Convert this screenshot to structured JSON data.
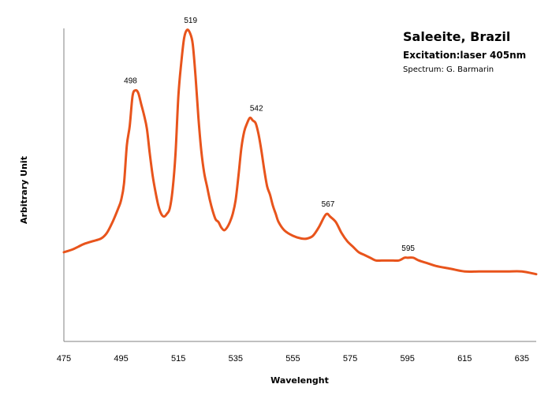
{
  "chart_data": {
    "type": "line",
    "title": "Saleeite, Brazil",
    "subtitle": "Excitation:laser 405nm",
    "credit": "Spectrum: G. Barmarin",
    "xlabel": "Wavelenght",
    "ylabel": "Arbitrary Unit",
    "xlim": [
      475,
      640
    ],
    "ylim": [
      0,
      100
    ],
    "x_ticks": [
      475,
      495,
      515,
      535,
      555,
      575,
      595,
      615,
      635
    ],
    "grid": false,
    "line_color": "#e8541c",
    "series": [
      {
        "x": [
          475,
          478,
          480,
          482,
          485,
          488,
          490,
          492,
          494,
          495,
          496,
          497,
          498,
          499,
          500,
          501,
          502,
          503,
          504,
          505,
          506,
          507,
          508,
          509,
          510,
          511,
          512,
          513,
          514,
          515,
          516,
          517,
          518,
          519,
          520,
          521,
          522,
          523,
          524,
          525,
          526,
          527,
          528,
          529,
          530,
          531,
          532,
          533,
          534,
          535,
          536,
          537,
          538,
          539,
          540,
          541,
          542,
          543,
          544,
          545,
          546,
          547,
          548,
          549,
          550,
          552,
          555,
          558,
          560,
          562,
          564,
          566,
          567,
          568,
          570,
          572,
          574,
          576,
          578,
          580,
          582,
          584,
          586,
          588,
          590,
          592,
          594,
          595,
          597,
          599,
          602,
          605,
          610,
          615,
          620,
          625,
          630,
          635,
          640
        ],
        "y": [
          19,
          20,
          21,
          22,
          23,
          24,
          26,
          30,
          35,
          38,
          44,
          58,
          65,
          76,
          78,
          77,
          73,
          69,
          64,
          55,
          47,
          41,
          36,
          33,
          32,
          33,
          35,
          42,
          55,
          76,
          88,
          97,
          100,
          99,
          95,
          83,
          68,
          56,
          48,
          43,
          38,
          34,
          31,
          30,
          28,
          27,
          28,
          30,
          33,
          38,
          47,
          57,
          63,
          66,
          68,
          67,
          66,
          62,
          56,
          49,
          43,
          40,
          36,
          33,
          30,
          27,
          25,
          24,
          24,
          25,
          28,
          32,
          33,
          32,
          30,
          26,
          23,
          21,
          19,
          18,
          17,
          16,
          16,
          16,
          16,
          16,
          17,
          17,
          17,
          16,
          15,
          14,
          13,
          12,
          12,
          12,
          12,
          12,
          11
        ]
      }
    ],
    "annotations": [
      {
        "x": 498,
        "y": 78,
        "label": "498"
      },
      {
        "x": 519,
        "y": 100,
        "label": "519"
      },
      {
        "x": 542,
        "y": 68,
        "label": "542"
      },
      {
        "x": 567,
        "y": 33,
        "label": "567"
      },
      {
        "x": 595,
        "y": 17,
        "label": "595"
      }
    ]
  }
}
